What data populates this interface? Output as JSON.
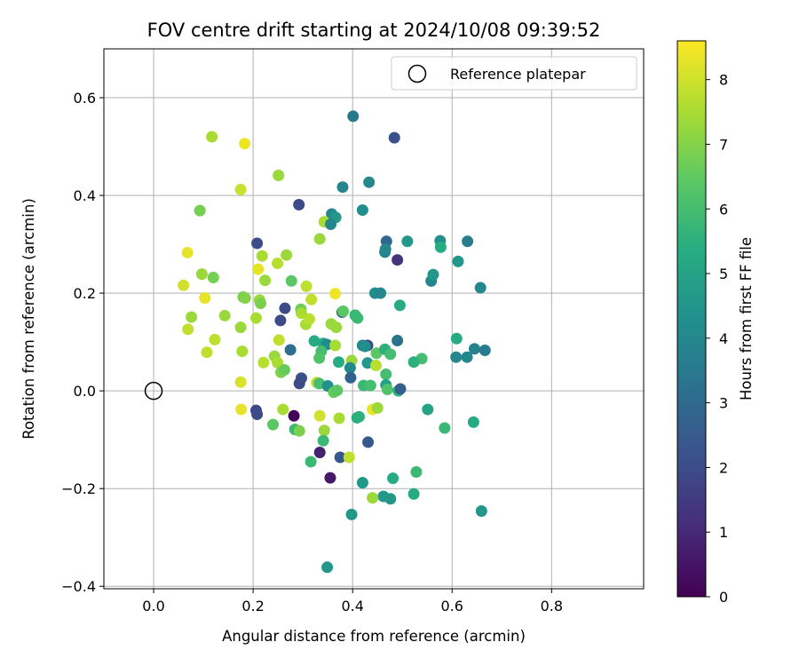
{
  "chart_data": {
    "type": "scatter",
    "title": "FOV centre drift starting at 2024/10/08 09:39:52",
    "xlabel": "Angular distance from reference (arcmin)",
    "ylabel": "Rotation from reference (arcmin)",
    "xlim": [
      -0.1,
      0.985
    ],
    "ylim": [
      -0.405,
      0.7
    ],
    "xticks": [
      0.0,
      0.2,
      0.4,
      0.6,
      0.8
    ],
    "xtick_labels": [
      "0.0",
      "0.2",
      "0.4",
      "0.6",
      "0.8"
    ],
    "yticks": [
      -0.4,
      -0.2,
      0.0,
      0.2,
      0.4,
      0.6
    ],
    "ytick_labels": [
      "−0.4",
      "−0.2",
      "0.0",
      "0.2",
      "0.4",
      "0.6"
    ],
    "grid": true,
    "legend": {
      "position": "top-right",
      "entries": [
        "Reference platepar"
      ]
    },
    "reference_point": {
      "x": 0.0,
      "y": 0.0,
      "marker": "hollow-circle"
    },
    "colorbar": {
      "label": "Hours from first FF file",
      "min": 0,
      "max": 8.6,
      "ticks": [
        0,
        1,
        2,
        3,
        4,
        5,
        6,
        7,
        8
      ],
      "colormap": "viridis"
    },
    "points": [
      {
        "x": 0.401,
        "y": 0.562,
        "h": 3.5
      },
      {
        "x": 0.484,
        "y": 0.518,
        "h": 2.2
      },
      {
        "x": 0.117,
        "y": 0.52,
        "h": 7.5
      },
      {
        "x": 0.183,
        "y": 0.506,
        "h": 8.4
      },
      {
        "x": 0.251,
        "y": 0.441,
        "h": 7.3
      },
      {
        "x": 0.175,
        "y": 0.412,
        "h": 7.9
      },
      {
        "x": 0.38,
        "y": 0.417,
        "h": 4.0
      },
      {
        "x": 0.433,
        "y": 0.427,
        "h": 4.0
      },
      {
        "x": 0.292,
        "y": 0.381,
        "h": 2.0
      },
      {
        "x": 0.093,
        "y": 0.369,
        "h": 6.8
      },
      {
        "x": 0.358,
        "y": 0.362,
        "h": 4.0
      },
      {
        "x": 0.366,
        "y": 0.355,
        "h": 4.6
      },
      {
        "x": 0.42,
        "y": 0.37,
        "h": 4.2
      },
      {
        "x": 0.343,
        "y": 0.346,
        "h": 7.5
      },
      {
        "x": 0.356,
        "y": 0.341,
        "h": 4.0
      },
      {
        "x": 0.334,
        "y": 0.311,
        "h": 7.3
      },
      {
        "x": 0.208,
        "y": 0.302,
        "h": 2.0
      },
      {
        "x": 0.468,
        "y": 0.306,
        "h": 2.9
      },
      {
        "x": 0.51,
        "y": 0.306,
        "h": 4.6
      },
      {
        "x": 0.576,
        "y": 0.307,
        "h": 4.3
      },
      {
        "x": 0.631,
        "y": 0.306,
        "h": 3.6
      },
      {
        "x": 0.465,
        "y": 0.284,
        "h": 3.8
      },
      {
        "x": 0.577,
        "y": 0.294,
        "h": 5.3
      },
      {
        "x": 0.466,
        "y": 0.29,
        "h": 4.0
      },
      {
        "x": 0.49,
        "y": 0.268,
        "h": 1.3
      },
      {
        "x": 0.068,
        "y": 0.283,
        "h": 8.3
      },
      {
        "x": 0.218,
        "y": 0.276,
        "h": 7.5
      },
      {
        "x": 0.267,
        "y": 0.278,
        "h": 7.3
      },
      {
        "x": 0.249,
        "y": 0.261,
        "h": 7.7
      },
      {
        "x": 0.612,
        "y": 0.265,
        "h": 4.6
      },
      {
        "x": 0.21,
        "y": 0.249,
        "h": 8.3
      },
      {
        "x": 0.097,
        "y": 0.239,
        "h": 7.3
      },
      {
        "x": 0.12,
        "y": 0.232,
        "h": 6.8
      },
      {
        "x": 0.224,
        "y": 0.226,
        "h": 7.3
      },
      {
        "x": 0.277,
        "y": 0.225,
        "h": 6.4
      },
      {
        "x": 0.558,
        "y": 0.225,
        "h": 4.0
      },
      {
        "x": 0.562,
        "y": 0.238,
        "h": 4.6
      },
      {
        "x": 0.06,
        "y": 0.216,
        "h": 8.0
      },
      {
        "x": 0.307,
        "y": 0.214,
        "h": 7.8
      },
      {
        "x": 0.657,
        "y": 0.211,
        "h": 4.0
      },
      {
        "x": 0.365,
        "y": 0.199,
        "h": 8.4
      },
      {
        "x": 0.445,
        "y": 0.2,
        "h": 4.2
      },
      {
        "x": 0.456,
        "y": 0.2,
        "h": 4.0
      },
      {
        "x": 0.103,
        "y": 0.19,
        "h": 8.3
      },
      {
        "x": 0.18,
        "y": 0.192,
        "h": 6.8
      },
      {
        "x": 0.184,
        "y": 0.19,
        "h": 7.0
      },
      {
        "x": 0.213,
        "y": 0.186,
        "h": 7.3
      },
      {
        "x": 0.215,
        "y": 0.179,
        "h": 6.9
      },
      {
        "x": 0.317,
        "y": 0.187,
        "h": 7.8
      },
      {
        "x": 0.495,
        "y": 0.175,
        "h": 5.3
      },
      {
        "x": 0.264,
        "y": 0.169,
        "h": 2.0
      },
      {
        "x": 0.296,
        "y": 0.167,
        "h": 6.7
      },
      {
        "x": 0.297,
        "y": 0.159,
        "h": 7.5
      },
      {
        "x": 0.379,
        "y": 0.161,
        "h": 2.6
      },
      {
        "x": 0.381,
        "y": 0.163,
        "h": 6.4
      },
      {
        "x": 0.076,
        "y": 0.151,
        "h": 7.3
      },
      {
        "x": 0.143,
        "y": 0.154,
        "h": 7.3
      },
      {
        "x": 0.206,
        "y": 0.149,
        "h": 7.5
      },
      {
        "x": 0.255,
        "y": 0.144,
        "h": 2.0
      },
      {
        "x": 0.306,
        "y": 0.136,
        "h": 7.5
      },
      {
        "x": 0.313,
        "y": 0.147,
        "h": 7.7
      },
      {
        "x": 0.357,
        "y": 0.137,
        "h": 7.3
      },
      {
        "x": 0.367,
        "y": 0.13,
        "h": 7.3
      },
      {
        "x": 0.405,
        "y": 0.155,
        "h": 5.8
      },
      {
        "x": 0.41,
        "y": 0.149,
        "h": 5.8
      },
      {
        "x": 0.069,
        "y": 0.126,
        "h": 7.8
      },
      {
        "x": 0.175,
        "y": 0.13,
        "h": 7.3
      },
      {
        "x": 0.123,
        "y": 0.105,
        "h": 7.8
      },
      {
        "x": 0.252,
        "y": 0.104,
        "h": 7.8
      },
      {
        "x": 0.323,
        "y": 0.102,
        "h": 5.3
      },
      {
        "x": 0.341,
        "y": 0.097,
        "h": 5.3
      },
      {
        "x": 0.348,
        "y": 0.095,
        "h": 4.2
      },
      {
        "x": 0.365,
        "y": 0.093,
        "h": 7.5
      },
      {
        "x": 0.42,
        "y": 0.093,
        "h": 4.0
      },
      {
        "x": 0.43,
        "y": 0.093,
        "h": 1.8
      },
      {
        "x": 0.49,
        "y": 0.103,
        "h": 3.3
      },
      {
        "x": 0.609,
        "y": 0.107,
        "h": 5.3
      },
      {
        "x": 0.178,
        "y": 0.081,
        "h": 7.5
      },
      {
        "x": 0.275,
        "y": 0.084,
        "h": 3.1
      },
      {
        "x": 0.337,
        "y": 0.081,
        "h": 6.0
      },
      {
        "x": 0.107,
        "y": 0.079,
        "h": 7.8
      },
      {
        "x": 0.425,
        "y": 0.091,
        "h": 4.3
      },
      {
        "x": 0.448,
        "y": 0.077,
        "h": 6.4
      },
      {
        "x": 0.465,
        "y": 0.085,
        "h": 5.5
      },
      {
        "x": 0.476,
        "y": 0.075,
        "h": 6.0
      },
      {
        "x": 0.608,
        "y": 0.069,
        "h": 4.0
      },
      {
        "x": 0.63,
        "y": 0.069,
        "h": 4.0
      },
      {
        "x": 0.645,
        "y": 0.086,
        "h": 3.8
      },
      {
        "x": 0.666,
        "y": 0.083,
        "h": 3.6
      },
      {
        "x": 0.539,
        "y": 0.066,
        "h": 6.0
      },
      {
        "x": 0.523,
        "y": 0.059,
        "h": 5.5
      },
      {
        "x": 0.243,
        "y": 0.071,
        "h": 7.3
      },
      {
        "x": 0.221,
        "y": 0.058,
        "h": 7.7
      },
      {
        "x": 0.249,
        "y": 0.058,
        "h": 7.5
      },
      {
        "x": 0.333,
        "y": 0.067,
        "h": 6.2
      },
      {
        "x": 0.372,
        "y": 0.059,
        "h": 5.3
      },
      {
        "x": 0.398,
        "y": 0.062,
        "h": 7.3
      },
      {
        "x": 0.43,
        "y": 0.057,
        "h": 4.6
      },
      {
        "x": 0.447,
        "y": 0.052,
        "h": 7.7
      },
      {
        "x": 0.395,
        "y": 0.047,
        "h": 4.0
      },
      {
        "x": 0.256,
        "y": 0.038,
        "h": 6.9
      },
      {
        "x": 0.263,
        "y": 0.043,
        "h": 6.6
      },
      {
        "x": 0.467,
        "y": 0.034,
        "h": 6.0
      },
      {
        "x": 0.396,
        "y": 0.027,
        "h": 2.7
      },
      {
        "x": 0.297,
        "y": 0.026,
        "h": 2.2
      },
      {
        "x": 0.175,
        "y": 0.018,
        "h": 8.1
      },
      {
        "x": 0.293,
        "y": 0.015,
        "h": 2.0
      },
      {
        "x": 0.328,
        "y": 0.017,
        "h": 7.8
      },
      {
        "x": 0.333,
        "y": 0.015,
        "h": 6.0
      },
      {
        "x": 0.35,
        "y": 0.01,
        "h": 4.3
      },
      {
        "x": 0.422,
        "y": 0.011,
        "h": 5.8
      },
      {
        "x": 0.436,
        "y": 0.011,
        "h": 6.0
      },
      {
        "x": 0.467,
        "y": 0.012,
        "h": 4.9
      },
      {
        "x": 0.47,
        "y": 0.003,
        "h": 6.2
      },
      {
        "x": 0.492,
        "y": 0.0,
        "h": 5.5
      },
      {
        "x": 0.496,
        "y": 0.004,
        "h": 2.6
      },
      {
        "x": 0.362,
        "y": -0.003,
        "h": 6.6
      },
      {
        "x": 0.369,
        "y": 0.001,
        "h": 6.4
      },
      {
        "x": 0.206,
        "y": -0.04,
        "h": 1.8
      },
      {
        "x": 0.176,
        "y": -0.038,
        "h": 8.3
      },
      {
        "x": 0.26,
        "y": -0.038,
        "h": 7.5
      },
      {
        "x": 0.208,
        "y": -0.048,
        "h": 2.0
      },
      {
        "x": 0.282,
        "y": -0.051,
        "h": 0.1
      },
      {
        "x": 0.334,
        "y": -0.051,
        "h": 8.0
      },
      {
        "x": 0.373,
        "y": -0.056,
        "h": 7.5
      },
      {
        "x": 0.409,
        "y": -0.055,
        "h": 5.3
      },
      {
        "x": 0.413,
        "y": -0.053,
        "h": 5.5
      },
      {
        "x": 0.44,
        "y": -0.038,
        "h": 8.3
      },
      {
        "x": 0.45,
        "y": -0.035,
        "h": 7.3
      },
      {
        "x": 0.551,
        "y": -0.038,
        "h": 5.0
      },
      {
        "x": 0.643,
        "y": -0.064,
        "h": 5.3
      },
      {
        "x": 0.24,
        "y": -0.069,
        "h": 6.4
      },
      {
        "x": 0.284,
        "y": -0.079,
        "h": 5.8
      },
      {
        "x": 0.293,
        "y": -0.082,
        "h": 6.9
      },
      {
        "x": 0.343,
        "y": -0.081,
        "h": 7.3
      },
      {
        "x": 0.585,
        "y": -0.076,
        "h": 5.8
      },
      {
        "x": 0.341,
        "y": -0.102,
        "h": 5.8
      },
      {
        "x": 0.431,
        "y": -0.105,
        "h": 2.4
      },
      {
        "x": 0.334,
        "y": -0.126,
        "h": 0.8
      },
      {
        "x": 0.375,
        "y": -0.136,
        "h": 2.4
      },
      {
        "x": 0.393,
        "y": -0.136,
        "h": 7.8
      },
      {
        "x": 0.316,
        "y": -0.145,
        "h": 5.8
      },
      {
        "x": 0.528,
        "y": -0.166,
        "h": 5.8
      },
      {
        "x": 0.355,
        "y": -0.178,
        "h": 0.6
      },
      {
        "x": 0.481,
        "y": -0.179,
        "h": 5.3
      },
      {
        "x": 0.42,
        "y": -0.188,
        "h": 4.6
      },
      {
        "x": 0.523,
        "y": -0.211,
        "h": 5.3
      },
      {
        "x": 0.462,
        "y": -0.216,
        "h": 4.6
      },
      {
        "x": 0.476,
        "y": -0.221,
        "h": 4.6
      },
      {
        "x": 0.44,
        "y": -0.219,
        "h": 7.3
      },
      {
        "x": 0.659,
        "y": -0.246,
        "h": 4.6
      },
      {
        "x": 0.398,
        "y": -0.253,
        "h": 4.6
      },
      {
        "x": 0.349,
        "y": -0.361,
        "h": 4.6
      }
    ]
  }
}
